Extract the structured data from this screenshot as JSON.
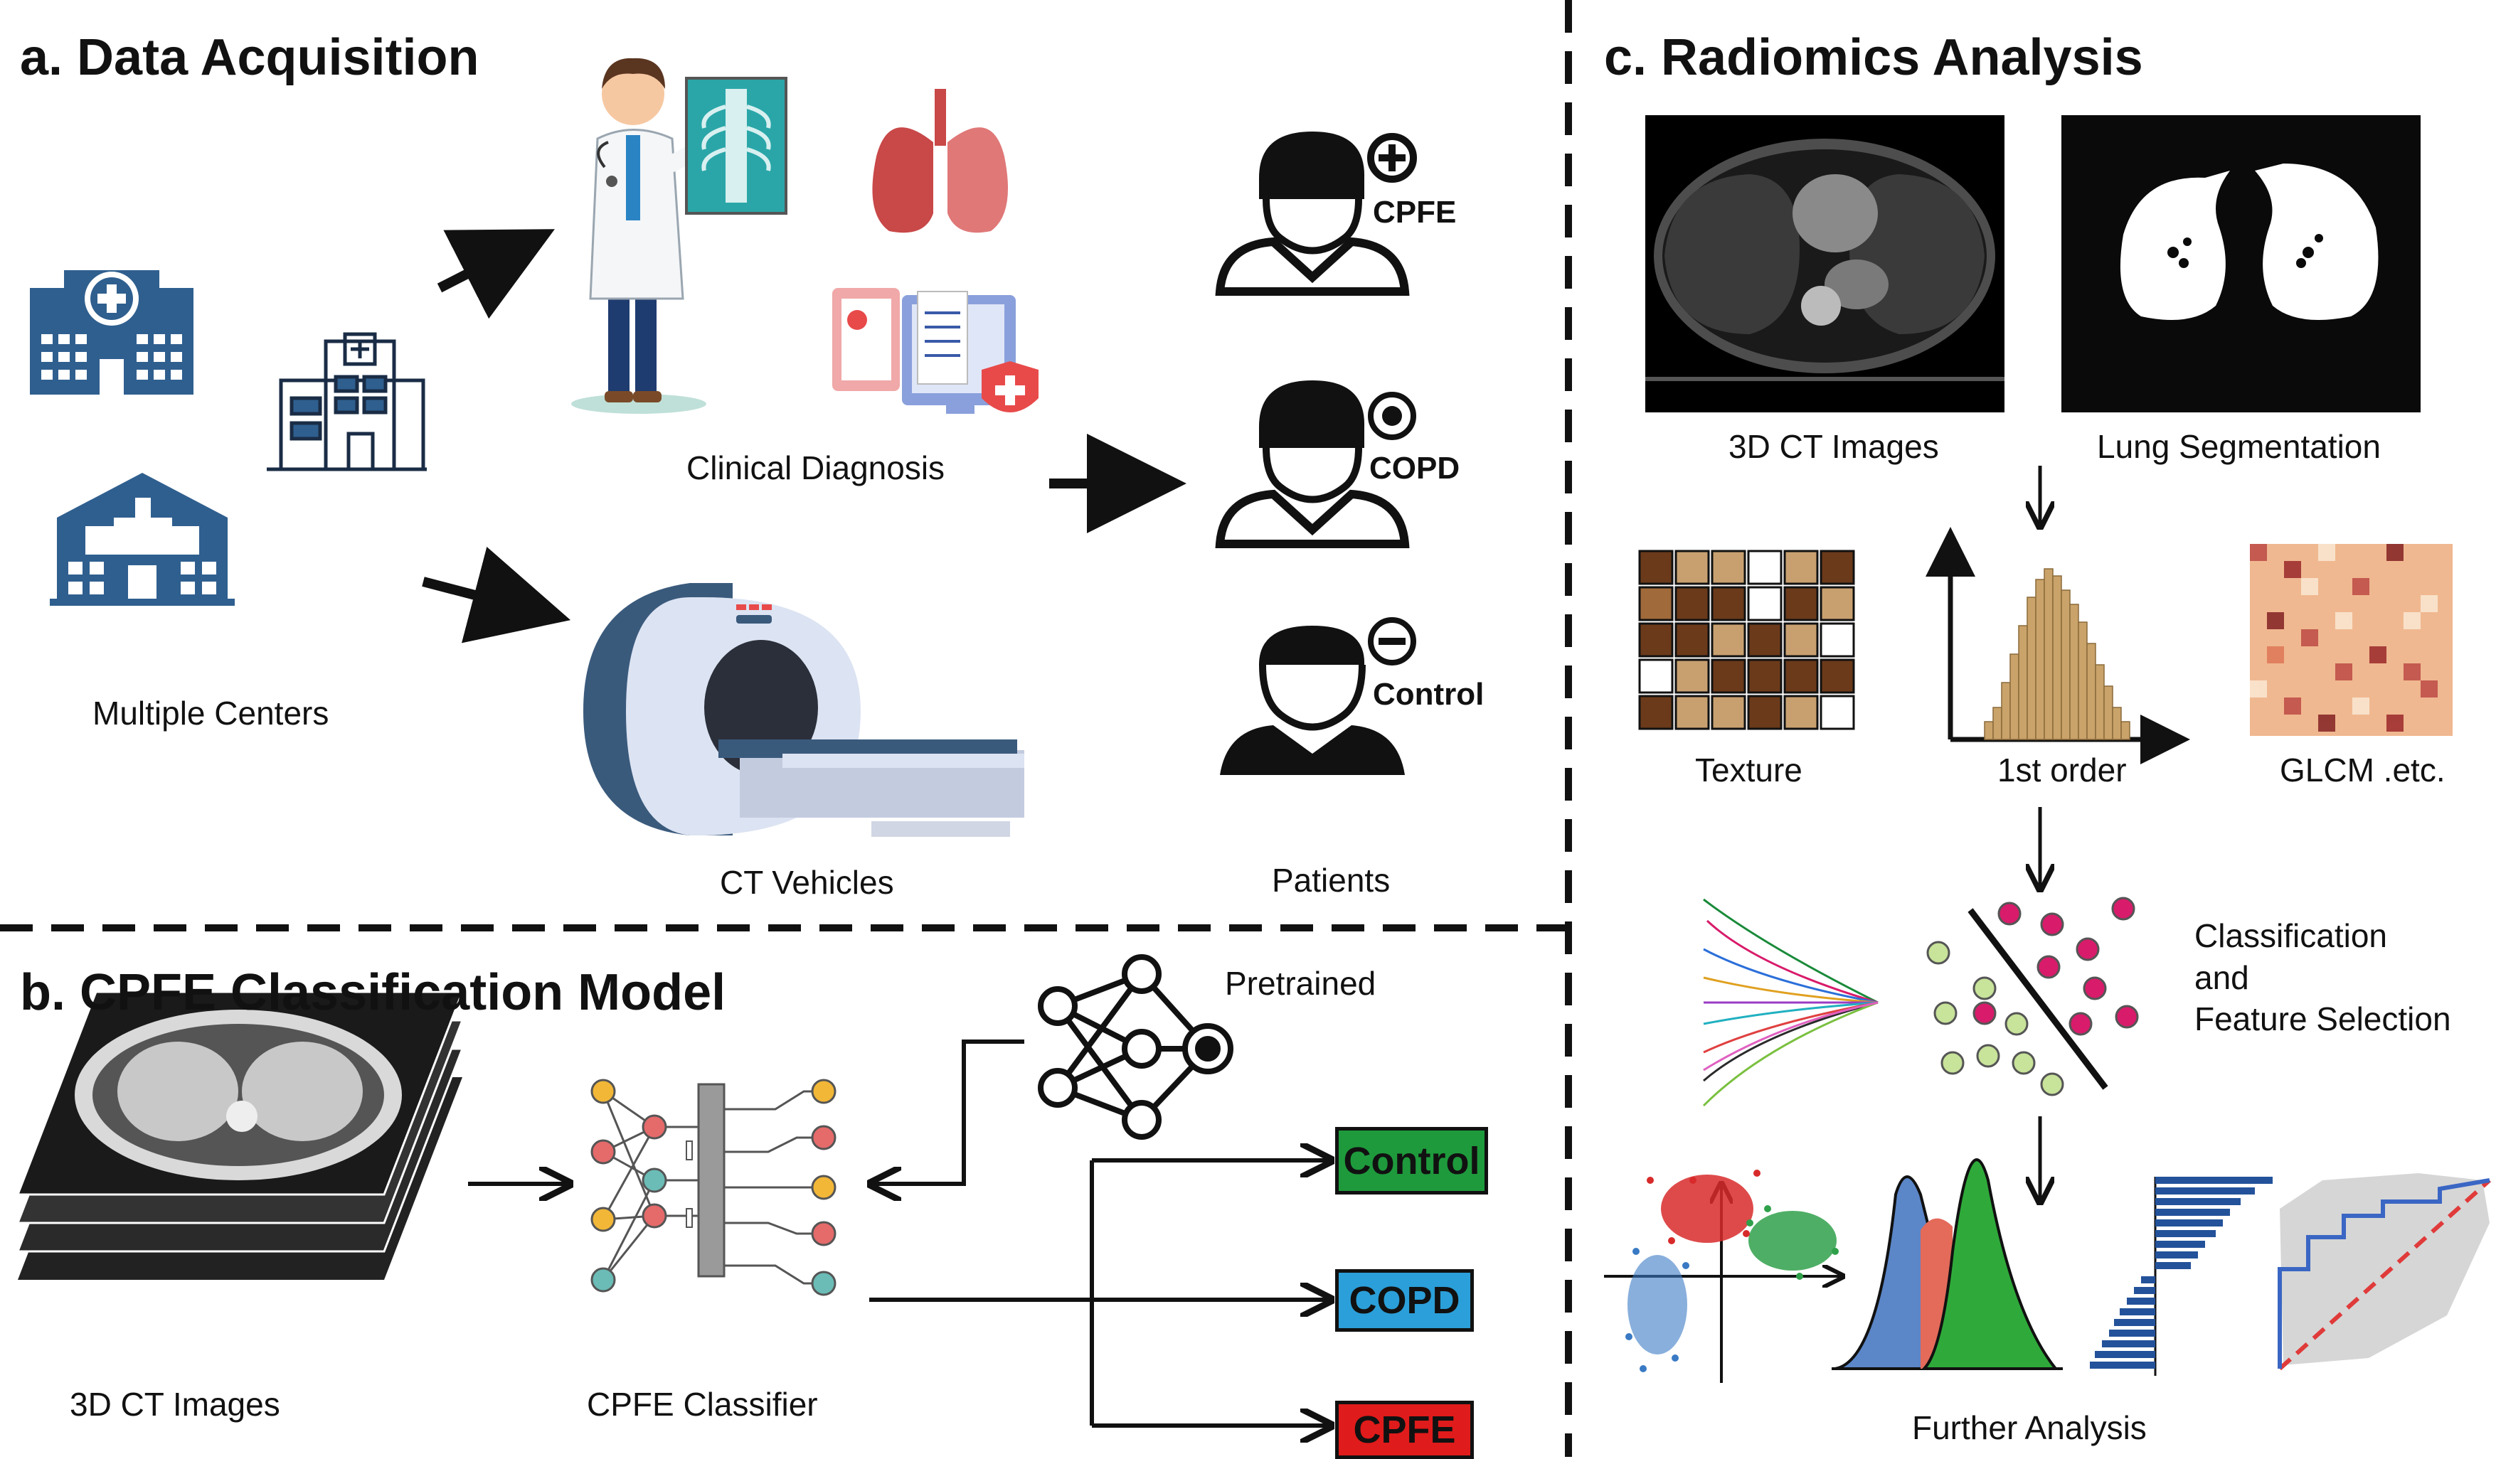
{
  "sections": {
    "a": {
      "title": "a. Data Acquisition",
      "multiple_centers": "Multiple Centers",
      "clinical_diagnosis": "Clinical Diagnosis",
      "ct_vehicles": "CT Vehicles",
      "patients": "Patients",
      "patient_groups": [
        "CPFE",
        "COPD",
        "Control"
      ]
    },
    "b": {
      "title": "b. CPFE Classification Model",
      "input_label": "3D CT Images",
      "classifier_label": "CPFE Classifier",
      "pretrained_label": "Pretrained",
      "outputs": [
        {
          "label": "Control",
          "color": "#1e9a3c"
        },
        {
          "label": "COPD",
          "color": "#2b9fd9"
        },
        {
          "label": "CPFE",
          "color": "#e01b1b"
        }
      ]
    },
    "c": {
      "title": "c. Radiomics Analysis",
      "ct_images": "3D CT Images",
      "lung_segmentation": "Lung Segmentation",
      "texture": "Texture",
      "first_order": "1st order",
      "glcm": "GLCM .etc.",
      "classification_line1": "Classification",
      "classification_line2": "and",
      "classification_line3": "Feature Selection",
      "further_analysis": "Further Analysis"
    }
  },
  "colors": {
    "hospital_blue": "#2f5f8f",
    "lung_red": "#c94848",
    "scanner_blue": "#3a5a7c",
    "pink": "#d81b6a",
    "lime": "#c8e39a"
  }
}
